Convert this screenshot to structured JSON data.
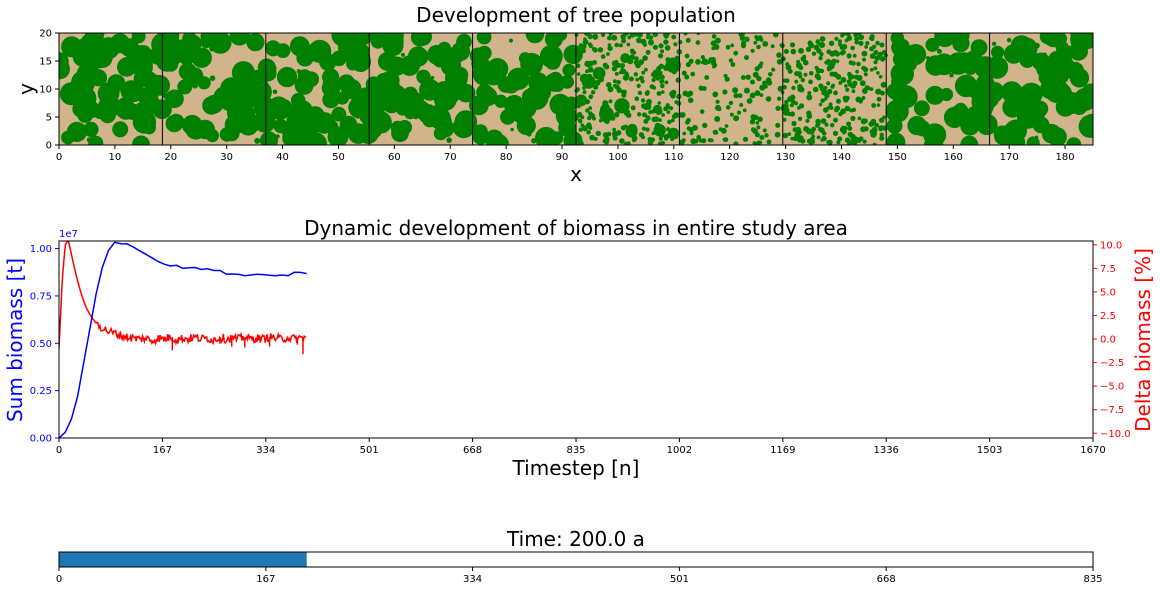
{
  "chart_data": [
    {
      "type": "heatmap",
      "title": "Development of tree population",
      "xlabel": "x",
      "ylabel": "y",
      "xlim": [
        0,
        185
      ],
      "ylim": [
        0,
        20
      ],
      "xticks": [
        "0",
        "10",
        "20",
        "30",
        "40",
        "50",
        "60",
        "70",
        "80",
        "90",
        "100",
        "110",
        "120",
        "130",
        "140",
        "150",
        "160",
        "170",
        "180"
      ],
      "yticks": [
        "0",
        "5",
        "10",
        "15",
        "20"
      ],
      "panel_boundaries_x": [
        18.5,
        37,
        55.5,
        74,
        92.5,
        111,
        129.5,
        148,
        166.5
      ],
      "panels": [
        {
          "x_range": [
            0,
            18.5
          ],
          "tree_cover": 0.9
        },
        {
          "x_range": [
            18.5,
            37
          ],
          "tree_cover": 0.88
        },
        {
          "x_range": [
            37,
            55.5
          ],
          "tree_cover": 0.86
        },
        {
          "x_range": [
            55.5,
            74
          ],
          "tree_cover": 0.83
        },
        {
          "x_range": [
            74,
            92.5
          ],
          "tree_cover": 0.72
        },
        {
          "x_range": [
            92.5,
            111
          ],
          "tree_cover": 0.55
        },
        {
          "x_range": [
            111,
            129.5
          ],
          "tree_cover": 0.08
        },
        {
          "x_range": [
            129.5,
            148
          ],
          "tree_cover": 0.35
        },
        {
          "x_range": [
            148,
            166.5
          ],
          "tree_cover": 0.7
        },
        {
          "x_range": [
            166.5,
            185
          ],
          "tree_cover": 0.87
        }
      ],
      "colors": {
        "tree": "#008000",
        "ground": "#d2b48c",
        "divider": "#000000"
      }
    },
    {
      "type": "line",
      "title": "Dynamic development of biomass in entire study area",
      "xlabel": "Timestep [n]",
      "ylabel": "Sum biomass [t]",
      "y2label": "Delta biomass [%]",
      "xlim": [
        0,
        1670
      ],
      "ylim": [
        0,
        1.04
      ],
      "y2lim": [
        -10.5,
        10.4
      ],
      "xticks": [
        "0",
        "167",
        "334",
        "501",
        "668",
        "835",
        "1002",
        "1169",
        "1336",
        "1503",
        "1670"
      ],
      "yticks": [
        "0.00",
        "0.25",
        "0.50",
        "0.75",
        "1.00"
      ],
      "y2ticks": [
        "10.0",
        "7.5",
        "5.0",
        "2.5",
        "0.0",
        "−2.5",
        "−5.0",
        "−7.5",
        "−10.0"
      ],
      "y_multiplier": "1e7",
      "series": [
        {
          "axis": "left",
          "color": "#0000ff",
          "x": [
            0,
            10,
            20,
            30,
            40,
            50,
            60,
            70,
            80,
            90,
            100,
            110,
            120,
            130,
            140,
            150,
            160,
            170,
            180,
            190,
            200,
            210,
            220,
            230,
            240,
            250,
            260,
            270,
            280,
            290,
            300,
            310,
            320,
            330,
            340,
            350,
            360,
            370,
            380,
            390,
            400
          ],
          "y": [
            0.0,
            0.03,
            0.1,
            0.22,
            0.4,
            0.58,
            0.76,
            0.9,
            0.99,
            1.03,
            1.03,
            1.02,
            1.01,
            0.99,
            0.97,
            0.95,
            0.93,
            0.92,
            0.91,
            0.91,
            0.9,
            0.9,
            0.9,
            0.89,
            0.89,
            0.88,
            0.88,
            0.87,
            0.87,
            0.86,
            0.86,
            0.86,
            0.86,
            0.86,
            0.86,
            0.86,
            0.86,
            0.86,
            0.87,
            0.87,
            0.87
          ]
        },
        {
          "axis": "right",
          "color": "#ff0000",
          "x": [
            0,
            5,
            10,
            15,
            20,
            25,
            30,
            35,
            40,
            45,
            50,
            55,
            60,
            65,
            70,
            75,
            80,
            85,
            90,
            95,
            100,
            105,
            110,
            120,
            130,
            140,
            150,
            160,
            170,
            180,
            190,
            200,
            210,
            220,
            230,
            240,
            250,
            260,
            270,
            280,
            290,
            300,
            310,
            320,
            330,
            340,
            350,
            360,
            370,
            380,
            390,
            400
          ],
          "y": [
            -1.0,
            6.0,
            10.0,
            10.5,
            9.0,
            7.5,
            6.2,
            5.0,
            4.0,
            3.2,
            2.6,
            2.1,
            1.7,
            1.4,
            1.2,
            1.0,
            0.8,
            0.7,
            0.6,
            0.5,
            0.4,
            0.3,
            0.2,
            0.1,
            0.0,
            0.1,
            -0.2,
            0.1,
            0.0,
            0.2,
            -0.1,
            0.1,
            0.0,
            0.2,
            0.0,
            0.1,
            -0.1,
            0.2,
            0.0,
            0.1,
            0.0,
            0.2,
            0.0,
            0.1,
            0.0,
            0.2,
            0.1,
            0.0,
            0.2,
            0.0,
            0.1,
            0.2
          ],
          "spikes": [
            {
              "x": 183,
              "y": -1.2
            },
            {
              "x": 260,
              "y": -0.5
            },
            {
              "x": 279,
              "y": -0.8
            },
            {
              "x": 300,
              "y": -0.9
            },
            {
              "x": 340,
              "y": -0.8
            },
            {
              "x": 385,
              "y": -0.6
            },
            {
              "x": 394,
              "y": -1.6
            }
          ]
        }
      ]
    },
    {
      "type": "bar",
      "title": "Time: 200.0 a",
      "xlim": [
        0,
        835
      ],
      "xticks": [
        "0",
        "167",
        "334",
        "501",
        "668",
        "835"
      ],
      "progress_value": 200,
      "bar_color": "#1f77b4"
    }
  ]
}
